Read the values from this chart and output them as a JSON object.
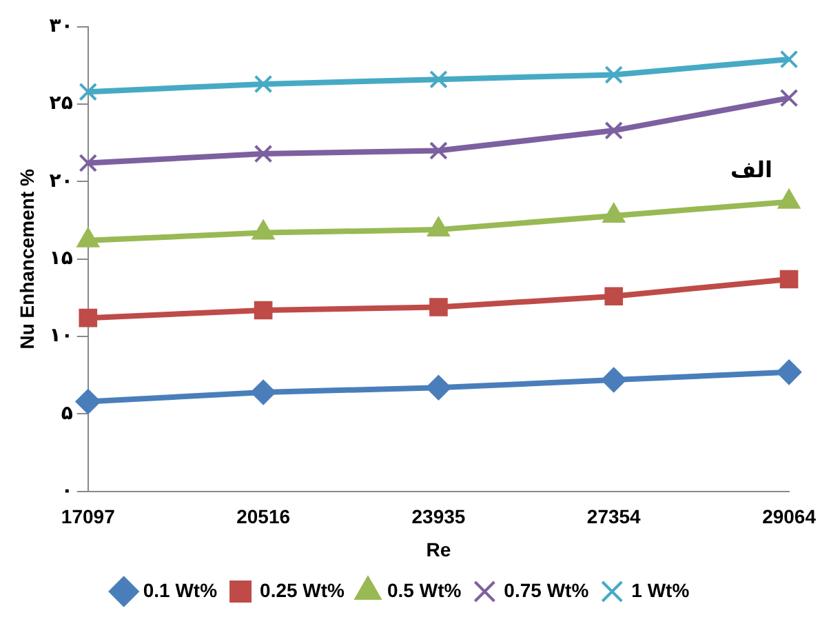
{
  "chart_data": {
    "type": "line",
    "xlabel": "Re",
    "ylabel": "Nu Enhancement %",
    "categories": [
      "17097",
      "20516",
      "23935",
      "27354",
      "29064"
    ],
    "series": [
      {
        "name": "0.1 Wt%",
        "color": "#4a7ebb",
        "marker": "diamond",
        "values": [
          5.8,
          6.4,
          6.7,
          7.2,
          7.7
        ]
      },
      {
        "name": "0.25 Wt%",
        "color": "#be4b48",
        "marker": "square",
        "values": [
          11.2,
          11.7,
          11.9,
          12.6,
          13.7
        ]
      },
      {
        "name": "0.5 Wt%",
        "color": "#98b954",
        "marker": "triangle",
        "values": [
          16.2,
          16.7,
          16.9,
          17.8,
          18.7
        ]
      },
      {
        "name": "0.75 Wt%",
        "color": "#7d60a0",
        "marker": "cross",
        "values": [
          21.2,
          21.8,
          22.0,
          23.3,
          25.4
        ]
      },
      {
        "name": "1 Wt%",
        "color": "#46aac5",
        "marker": "cross",
        "values": [
          25.8,
          26.3,
          26.6,
          26.9,
          27.9
        ]
      }
    ],
    "ylim": [
      0,
      30
    ],
    "yticks": [
      {
        "value": 0,
        "label": "۰"
      },
      {
        "value": 5,
        "label": "۵"
      },
      {
        "value": 10,
        "label": "۱۰"
      },
      {
        "value": 15,
        "label": "۱۵"
      },
      {
        "value": 20,
        "label": "۲۰"
      },
      {
        "value": 25,
        "label": "۲۵"
      },
      {
        "value": 30,
        "label": "۳۰"
      }
    ],
    "annotations": [
      "الف"
    ],
    "grid": false,
    "legend": "bottom",
    "line_style": "solid"
  }
}
